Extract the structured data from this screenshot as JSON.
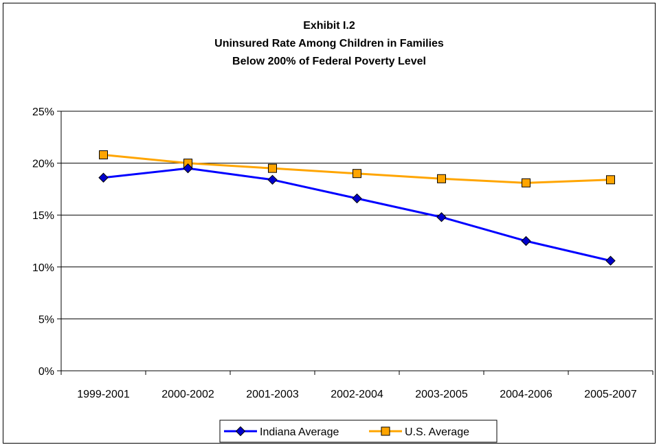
{
  "chart_data": {
    "type": "line",
    "title": [
      "Exhibit I.2",
      "Uninsured Rate Among Children in Families",
      "Below 200% of Federal Poverty Level"
    ],
    "categories": [
      "1999-2001",
      "2000-2002",
      "2001-2003",
      "2002-2004",
      "2003-2005",
      "2004-2006",
      "2005-2007"
    ],
    "y_ticks": [
      "0%",
      "5%",
      "10%",
      "15%",
      "20%",
      "25%"
    ],
    "ylim": [
      0,
      25
    ],
    "grid": "horizontal",
    "legend_position": "bottom",
    "series": [
      {
        "name": "Indiana Average",
        "color": "#0000ff",
        "marker": "diamond",
        "marker_fill": "#0000cc",
        "values": [
          18.6,
          19.5,
          18.4,
          16.6,
          14.8,
          12.5,
          10.6
        ]
      },
      {
        "name": "U.S. Average",
        "color": "#ffa500",
        "marker": "square",
        "marker_fill": "#ffa500",
        "values": [
          20.8,
          20.0,
          19.5,
          19.0,
          18.5,
          18.1,
          18.4
        ]
      }
    ]
  }
}
